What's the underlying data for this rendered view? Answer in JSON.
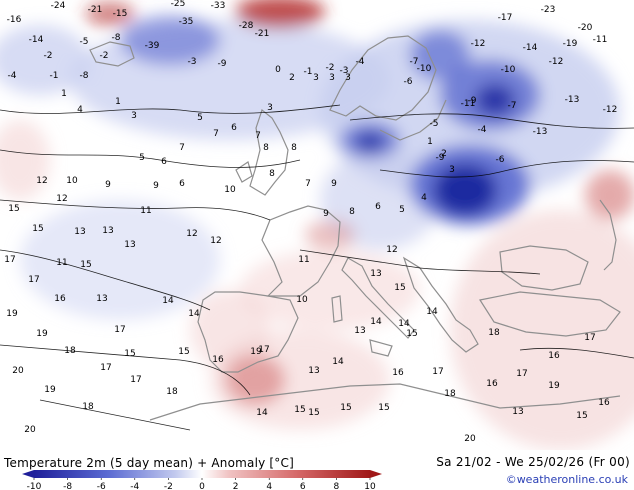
{
  "title": "Temperature 2m (5 day mean) + Anomaly [°C]",
  "period": "Sa 21/02 - We 25/02/26 (Fr 00)",
  "credit": "©weatheronline.co.uk",
  "colorbar": {
    "ticks": [
      "-10",
      "-8",
      "-6",
      "-4",
      "-2",
      "0",
      "2",
      "4",
      "6",
      "8",
      "10"
    ],
    "colors": {
      "neg_strong": "#1f1f9a",
      "neg_mid": "#5a6ad2",
      "neg_light": "#c2c9ee",
      "neutral": "#ffffff",
      "pos_light": "#f0c3c3",
      "pos_mid": "#d66a6a",
      "pos_strong": "#a01818"
    }
  },
  "map_colors": {
    "coast": "#8f8f8f",
    "contour": "#000000",
    "cold_core": "#1e2aa0",
    "cold_mid": "#5b6bd0",
    "cold_light": "#c6cdef",
    "warm_light": "#f1cccc",
    "warm_mid": "#d88686",
    "warm_strong": "#b43030"
  },
  "labels": [
    {
      "t": "-16"
    },
    {
      "t": "-24"
    },
    {
      "t": "-21"
    },
    {
      "t": "-15"
    },
    {
      "t": "-25"
    },
    {
      "t": "-33"
    },
    {
      "t": "-39"
    },
    {
      "t": "-35"
    },
    {
      "t": "-28"
    },
    {
      "t": "-21"
    },
    {
      "t": "-14"
    },
    {
      "t": "-8"
    },
    {
      "t": "-1"
    },
    {
      "t": "-5"
    },
    {
      "t": "-3"
    },
    {
      "t": "-2"
    },
    {
      "t": "-9"
    },
    {
      "t": "-8"
    },
    {
      "t": "-12"
    },
    {
      "t": "-17"
    },
    {
      "t": "-23"
    },
    {
      "t": "-20"
    },
    {
      "t": "-19"
    },
    {
      "t": "-14"
    },
    {
      "t": "-11"
    },
    {
      "t": "-13"
    },
    {
      "t": "-12"
    },
    {
      "t": "-10"
    },
    {
      "t": "-7"
    },
    {
      "t": "-5"
    },
    {
      "t": "-13"
    },
    {
      "t": "-11"
    },
    {
      "t": "-4"
    },
    {
      "t": "-6"
    },
    {
      "t": "-9"
    },
    {
      "t": "-12"
    },
    {
      "t": "-2"
    },
    {
      "t": "-4"
    },
    {
      "t": "1"
    },
    {
      "t": "2"
    },
    {
      "t": "3"
    },
    {
      "t": "3"
    },
    {
      "t": "3"
    },
    {
      "t": "3"
    },
    {
      "t": "4"
    },
    {
      "t": "3"
    },
    {
      "t": "1"
    },
    {
      "t": "5"
    },
    {
      "t": "6"
    },
    {
      "t": "7"
    },
    {
      "t": "8"
    },
    {
      "t": "7"
    },
    {
      "t": "6"
    },
    {
      "t": "5"
    },
    {
      "t": "6"
    },
    {
      "t": "7"
    },
    {
      "t": "8"
    },
    {
      "t": "8"
    },
    {
      "t": "9"
    },
    {
      "t": "12"
    },
    {
      "t": "10"
    },
    {
      "t": "9"
    },
    {
      "t": "7"
    },
    {
      "t": "9"
    },
    {
      "t": "10"
    },
    {
      "t": "11"
    },
    {
      "t": "12"
    },
    {
      "t": "13"
    },
    {
      "t": "11"
    },
    {
      "t": "13"
    },
    {
      "t": "12"
    },
    {
      "t": "12"
    },
    {
      "t": "15"
    },
    {
      "t": "13"
    },
    {
      "t": "15"
    },
    {
      "t": "17"
    },
    {
      "t": "15"
    },
    {
      "t": "13"
    },
    {
      "t": "16"
    },
    {
      "t": "17"
    },
    {
      "t": "14"
    },
    {
      "t": "19"
    },
    {
      "t": "19"
    },
    {
      "t": "18"
    },
    {
      "t": "17"
    },
    {
      "t": "15"
    },
    {
      "t": "14"
    },
    {
      "t": "15"
    },
    {
      "t": "17"
    },
    {
      "t": "18"
    },
    {
      "t": "20"
    },
    {
      "t": "19"
    },
    {
      "t": "17"
    },
    {
      "t": "18"
    },
    {
      "t": "16"
    },
    {
      "t": "17"
    },
    {
      "t": "19"
    },
    {
      "t": "20"
    },
    {
      "t": "14"
    },
    {
      "t": "15"
    },
    {
      "t": "15"
    },
    {
      "t": "13"
    },
    {
      "t": "14"
    },
    {
      "t": "15"
    },
    {
      "t": "13"
    },
    {
      "t": "14"
    },
    {
      "t": "15"
    },
    {
      "t": "16"
    },
    {
      "t": "14"
    },
    {
      "t": "15"
    },
    {
      "t": "17"
    },
    {
      "t": "18"
    },
    {
      "t": "16"
    },
    {
      "t": "17"
    },
    {
      "t": "13"
    },
    {
      "t": "15"
    },
    {
      "t": "14"
    },
    {
      "t": "12"
    },
    {
      "t": "10"
    },
    {
      "t": "11"
    },
    {
      "t": "9"
    },
    {
      "t": "8"
    },
    {
      "t": "6"
    },
    {
      "t": "5"
    },
    {
      "t": "4"
    },
    {
      "t": "3"
    },
    {
      "t": "2"
    },
    {
      "t": "1"
    },
    {
      "t": "0"
    },
    {
      "t": "-1"
    },
    {
      "t": "-2"
    },
    {
      "t": "-3"
    },
    {
      "t": "-4"
    },
    {
      "t": "-6"
    },
    {
      "t": "-7"
    },
    {
      "t": "-9"
    },
    {
      "t": "-10"
    },
    {
      "t": "16"
    },
    {
      "t": "17"
    },
    {
      "t": "20"
    },
    {
      "t": "19"
    },
    {
      "t": "18"
    },
    {
      "t": "13"
    },
    {
      "t": "15"
    },
    {
      "t": "16"
    },
    {
      "t": "14"
    }
  ]
}
